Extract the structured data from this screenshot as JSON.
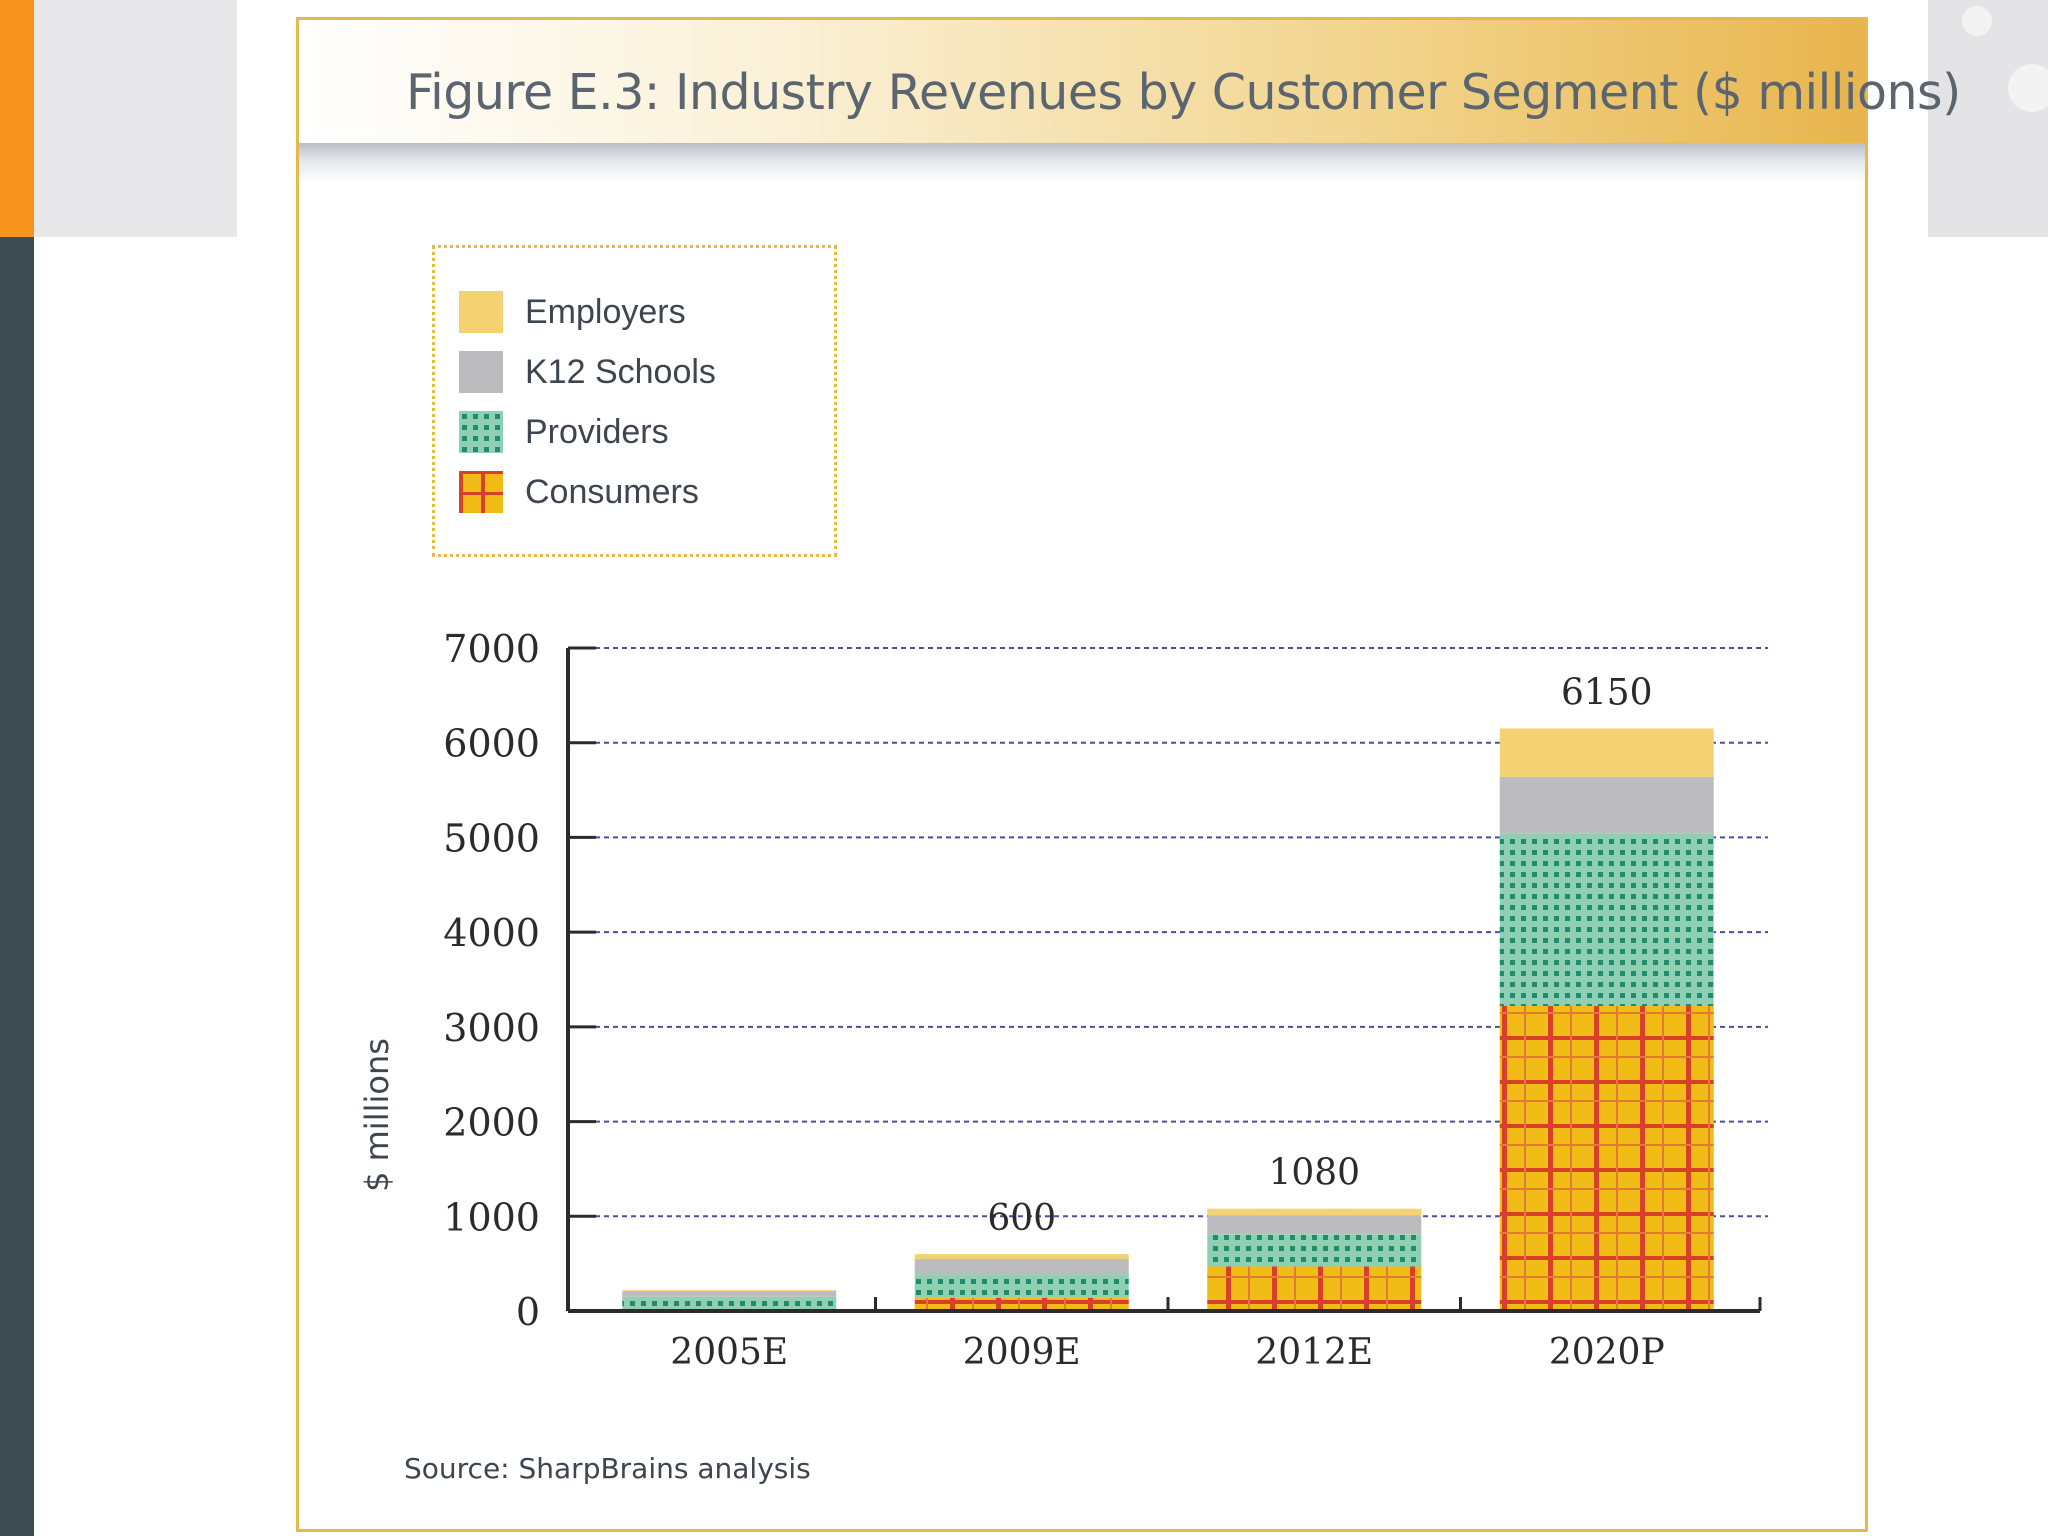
{
  "title": "Figure E.3: Industry Revenues by Customer Segment  ($ millions)",
  "source": "Source: SharpBrains analysis",
  "colors": {
    "employers": "#f5d271",
    "k12": "#bcbcbf",
    "providers_bg": "#8fd0b4",
    "providers_dot": "#1f8d6c",
    "consumers_bg": "#f2bc16",
    "consumers_grid": "#d9402a",
    "gridline": "#4b4fa0",
    "axis": "#2b2b2b",
    "card_border": "#e6b94c"
  },
  "legend": [
    {
      "key": "employers",
      "label": "Employers",
      "icon": "solid-swatch"
    },
    {
      "key": "k12",
      "label": "K12 Schools",
      "icon": "solid-swatch"
    },
    {
      "key": "providers",
      "label": "Providers",
      "icon": "dotted-swatch"
    },
    {
      "key": "consumers",
      "label": "Consumers",
      "icon": "plaid-swatch"
    }
  ],
  "chart_data": {
    "type": "bar",
    "stacked": true,
    "title": "Figure E.3: Industry Revenues by Customer Segment  ($ millions)",
    "xlabel": "",
    "ylabel": "$ millions",
    "ylim": [
      0,
      7000
    ],
    "yticks": [
      0,
      1000,
      2000,
      3000,
      4000,
      5000,
      6000,
      7000
    ],
    "grid": true,
    "legend_position": "top-left",
    "categories": [
      "2005E",
      "2009E",
      "2012E",
      "2020P"
    ],
    "series": [
      {
        "name": "Consumers",
        "key": "consumers",
        "values": [
          20,
          140,
          470,
          3220
        ]
      },
      {
        "name": "Providers",
        "key": "providers",
        "values": [
          130,
          250,
          340,
          1820
        ]
      },
      {
        "name": "K12 Schools",
        "key": "k12",
        "values": [
          60,
          160,
          200,
          600
        ]
      },
      {
        "name": "Employers",
        "key": "employers",
        "values": [
          10,
          50,
          70,
          510
        ]
      }
    ],
    "totals": [
      220,
      600,
      1080,
      6150
    ],
    "total_labels": [
      "",
      "600",
      "1080",
      "6150"
    ]
  }
}
